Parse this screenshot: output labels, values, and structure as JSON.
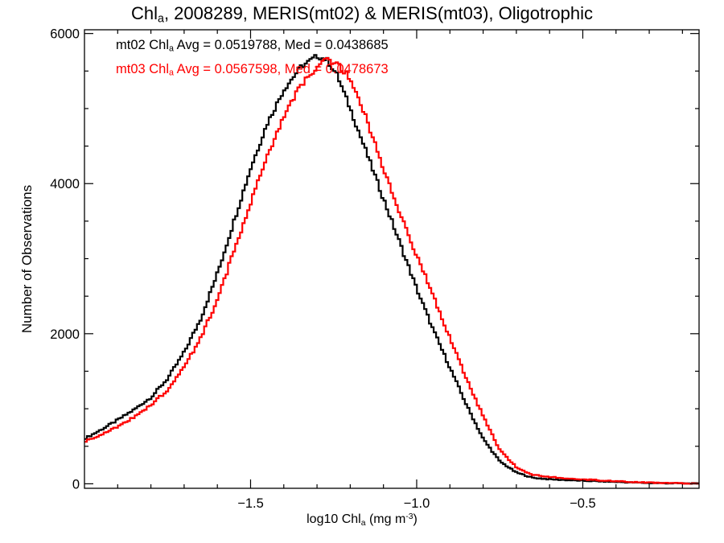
{
  "chart_data": {
    "type": "line",
    "title": {
      "pre": "Chl",
      "sub": "a",
      "post": ", 2008289, MERIS(mt02) & MERIS(mt03), Oligotrophic"
    },
    "xlabel": {
      "pre": "log10 Chl",
      "sub": "a",
      "mid": " (mg m",
      "sup": "-3",
      "post": ")"
    },
    "ylabel": "Number of Observations",
    "xlim": [
      -2.0,
      -0.15
    ],
    "ylim": [
      -60,
      6050
    ],
    "xticks": [
      {
        "value": -1.5,
        "label": "−1.5"
      },
      {
        "value": -1.0,
        "label": "−1.0"
      },
      {
        "value": -0.5,
        "label": "−0.5"
      }
    ],
    "yticks": [
      {
        "value": 0,
        "label": "0"
      },
      {
        "value": 2000,
        "label": "2000"
      },
      {
        "value": 4000,
        "label": "4000"
      },
      {
        "value": 6000,
        "label": "6000"
      }
    ],
    "annotations": [
      {
        "pre": "mt02 Chl",
        "sub": "a",
        "post": " Avg = 0.0519788, Med = 0.0438685",
        "color": "#000000"
      },
      {
        "pre": "mt03 Chl",
        "sub": "a",
        "post": " Avg = 0.0567598, Med = 0.0478673",
        "color": "#ff0000"
      }
    ],
    "series": [
      {
        "name": "mt02",
        "color": "#000000",
        "points": [
          [
            -2.0,
            600
          ],
          [
            -1.95,
            720
          ],
          [
            -1.9,
            850
          ],
          [
            -1.85,
            990
          ],
          [
            -1.8,
            1150
          ],
          [
            -1.75,
            1400
          ],
          [
            -1.7,
            1750
          ],
          [
            -1.65,
            2200
          ],
          [
            -1.6,
            2800
          ],
          [
            -1.55,
            3500
          ],
          [
            -1.5,
            4200
          ],
          [
            -1.45,
            4800
          ],
          [
            -1.4,
            5250
          ],
          [
            -1.35,
            5550
          ],
          [
            -1.3,
            5700
          ],
          [
            -1.27,
            5650
          ],
          [
            -1.24,
            5450
          ],
          [
            -1.2,
            5000
          ],
          [
            -1.15,
            4400
          ],
          [
            -1.1,
            3800
          ],
          [
            -1.05,
            3200
          ],
          [
            -1.0,
            2600
          ],
          [
            -0.95,
            2050
          ],
          [
            -0.9,
            1550
          ],
          [
            -0.85,
            1050
          ],
          [
            -0.8,
            600
          ],
          [
            -0.75,
            300
          ],
          [
            -0.7,
            150
          ],
          [
            -0.65,
            80
          ],
          [
            -0.6,
            60
          ],
          [
            -0.5,
            40
          ],
          [
            -0.4,
            25
          ],
          [
            -0.3,
            10
          ],
          [
            -0.2,
            5
          ],
          [
            -0.15,
            3
          ]
        ]
      },
      {
        "name": "mt03",
        "color": "#ff0000",
        "points": [
          [
            -2.0,
            560
          ],
          [
            -1.95,
            650
          ],
          [
            -1.9,
            760
          ],
          [
            -1.85,
            890
          ],
          [
            -1.8,
            1050
          ],
          [
            -1.75,
            1250
          ],
          [
            -1.7,
            1550
          ],
          [
            -1.65,
            1950
          ],
          [
            -1.6,
            2450
          ],
          [
            -1.55,
            3100
          ],
          [
            -1.5,
            3750
          ],
          [
            -1.45,
            4350
          ],
          [
            -1.4,
            4900
          ],
          [
            -1.35,
            5300
          ],
          [
            -1.3,
            5550
          ],
          [
            -1.27,
            5650
          ],
          [
            -1.24,
            5600
          ],
          [
            -1.2,
            5400
          ],
          [
            -1.15,
            4850
          ],
          [
            -1.1,
            4200
          ],
          [
            -1.05,
            3600
          ],
          [
            -1.0,
            3050
          ],
          [
            -0.95,
            2500
          ],
          [
            -0.9,
            1950
          ],
          [
            -0.85,
            1400
          ],
          [
            -0.8,
            900
          ],
          [
            -0.75,
            450
          ],
          [
            -0.7,
            220
          ],
          [
            -0.65,
            120
          ],
          [
            -0.6,
            90
          ],
          [
            -0.5,
            60
          ],
          [
            -0.4,
            35
          ],
          [
            -0.3,
            15
          ],
          [
            -0.2,
            6
          ],
          [
            -0.15,
            3
          ]
        ]
      }
    ]
  }
}
